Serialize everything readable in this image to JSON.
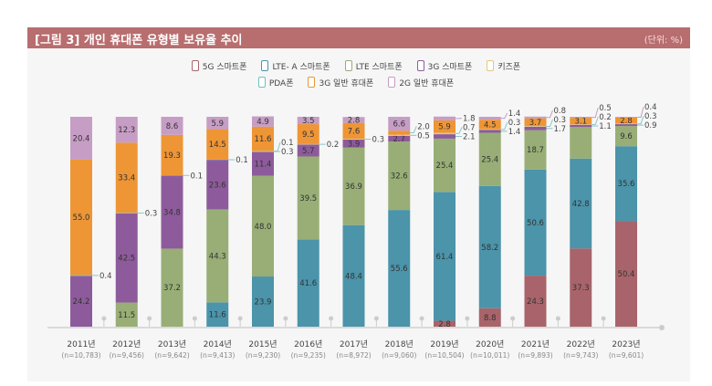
{
  "header": {
    "title": "[그림 3]  개인 휴대폰 유형별 보유율 추이",
    "unit": "(단위: %)"
  },
  "chart_data": {
    "type": "bar",
    "stacked": true,
    "ylim": [
      0,
      100
    ],
    "grid": false,
    "legend_position": "top",
    "title": "[그림 3]  개인 휴대폰 유형별 보유율 추이",
    "categories": [
      "2011년",
      "2012년",
      "2013년",
      "2014년",
      "2015년",
      "2016년",
      "2017년",
      "2018년",
      "2019년",
      "2020년",
      "2021년",
      "2022년",
      "2023년"
    ],
    "sample_sizes": [
      "(n=10,783)",
      "(n=9,456)",
      "(n=9,642)",
      "(n=9,413)",
      "(n=9,230)",
      "(n=9,235)",
      "(n=8,972)",
      "(n=9,060)",
      "(n=10,504)",
      "(n=10,011)",
      "(n=9,893)",
      "(n=9,743)",
      "(n=9,601)"
    ],
    "series": [
      {
        "name": "5G 스마트폰",
        "color": "#a8646a",
        "values": [
          null,
          null,
          null,
          null,
          null,
          null,
          null,
          null,
          2.8,
          8.8,
          24.3,
          37.3,
          50.4
        ]
      },
      {
        "name": "LTE- A 스마트폰",
        "color": "#4b94aa",
        "values": [
          null,
          null,
          null,
          11.6,
          23.9,
          41.6,
          48.4,
          55.6,
          61.4,
          58.2,
          50.6,
          42.8,
          35.6
        ]
      },
      {
        "name": "LTE 스마트폰",
        "color": "#98ae76",
        "values": [
          null,
          11.5,
          37.2,
          44.3,
          48.0,
          39.5,
          36.9,
          32.6,
          25.4,
          25.4,
          18.7,
          null,
          9.6
        ]
      },
      {
        "name": "3G 스마트폰",
        "color": "#8d5b9b",
        "values": [
          24.2,
          42.5,
          34.8,
          23.6,
          11.4,
          5.7,
          3.9,
          2.7,
          2.1,
          1.4,
          1.7,
          1.1,
          0.9
        ]
      },
      {
        "name": "키즈폰",
        "color": "#e3c77e",
        "values": [
          null,
          null,
          null,
          null,
          0.3,
          0.2,
          0.3,
          0.5,
          0.7,
          0.3,
          0.3,
          0.2,
          0.3
        ]
      },
      {
        "name": "PDA폰",
        "color": "#6fbfc2",
        "values": [
          0.4,
          0.3,
          0.1,
          0.1,
          0.1,
          null,
          null,
          null,
          null,
          null,
          null,
          null,
          null
        ]
      },
      {
        "name": "3G 일반 휴대폰",
        "color": "#ee9535",
        "values": [
          55.0,
          33.4,
          19.3,
          14.5,
          11.6,
          9.5,
          7.6,
          2.0,
          5.9,
          4.5,
          3.7,
          3.1,
          2.8
        ]
      },
      {
        "name": "2G 일반 휴대폰",
        "color": "#c69dc4",
        "values": [
          20.4,
          12.3,
          8.6,
          5.9,
          4.9,
          3.5,
          2.8,
          6.6,
          1.8,
          1.4,
          0.8,
          0.5,
          0.4
        ]
      }
    ]
  }
}
